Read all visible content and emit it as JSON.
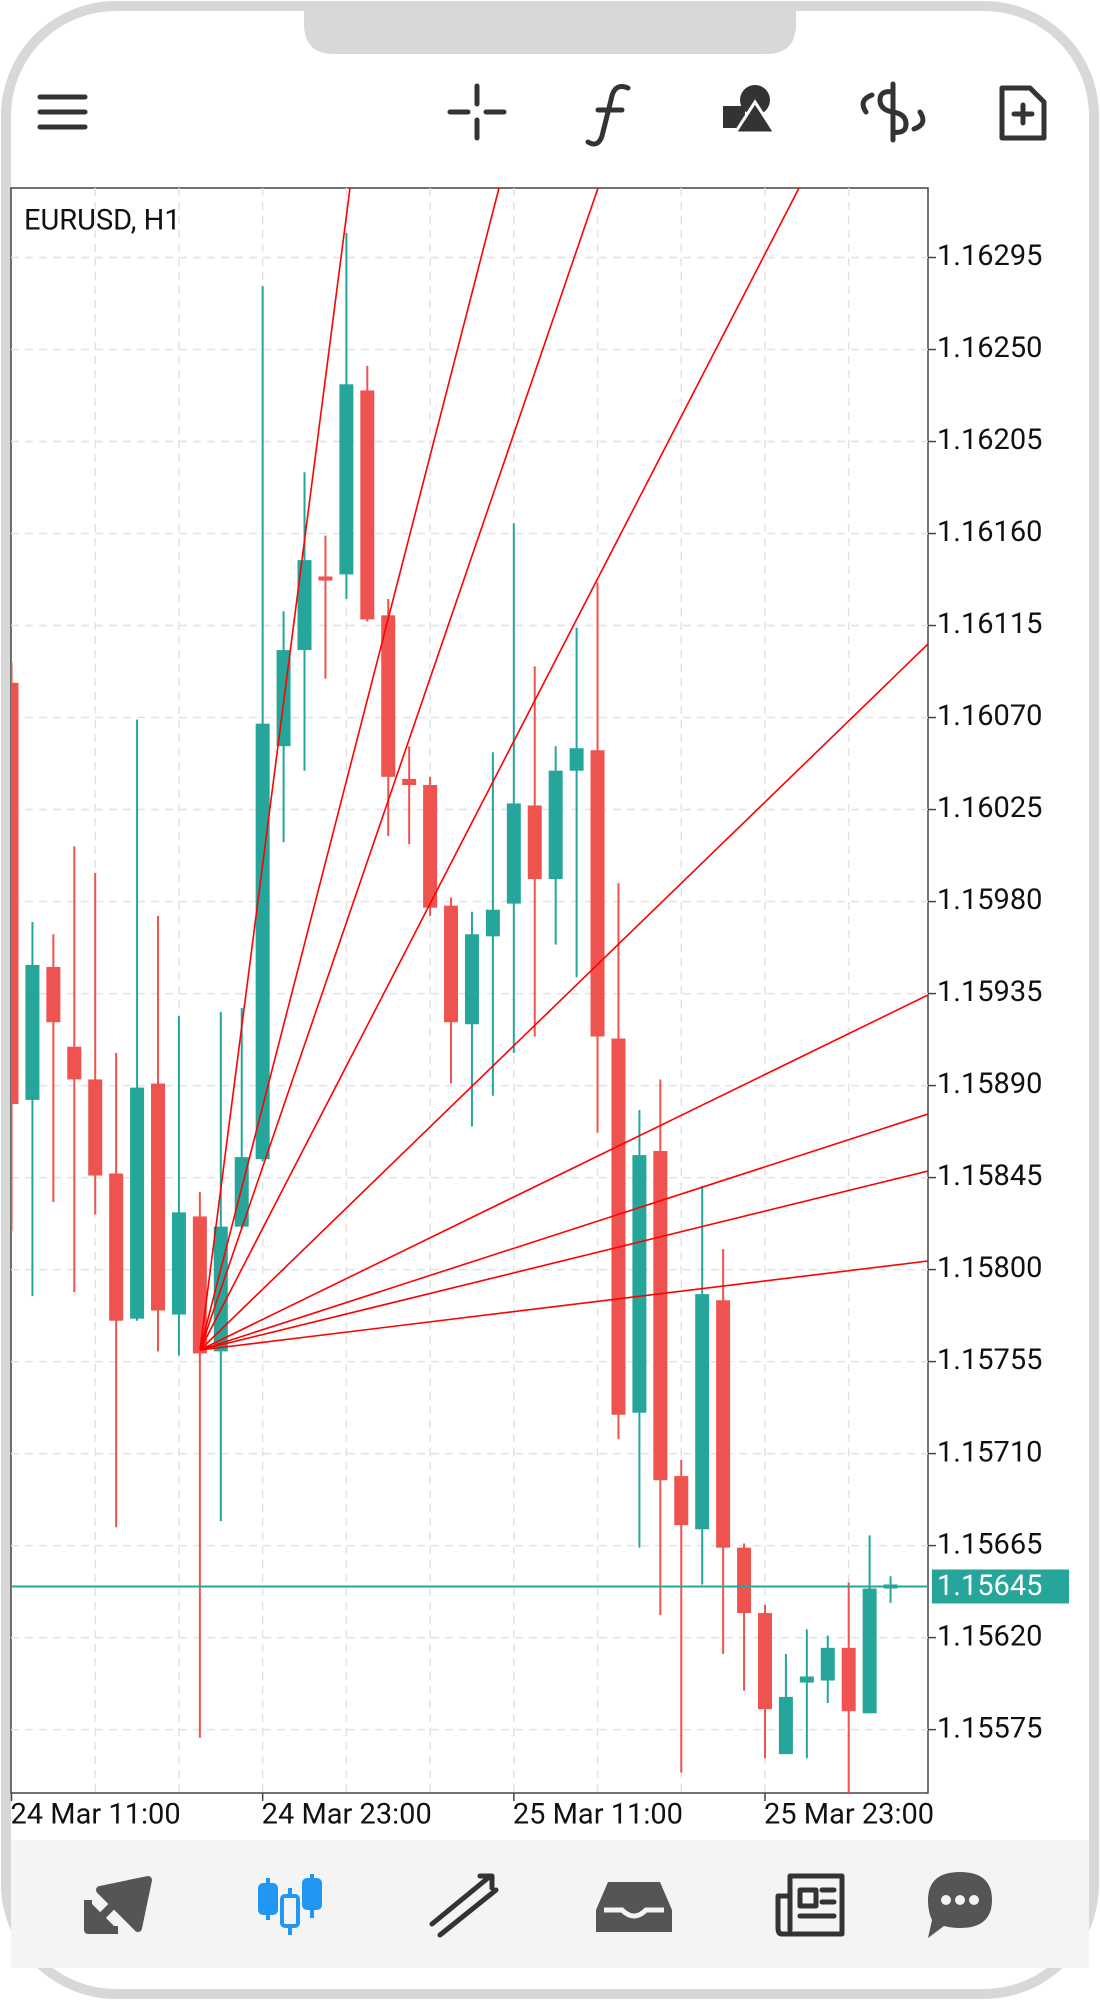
{
  "chart_data": {
    "type": "candlestick",
    "title": "EURUSD, H1",
    "categories": [
      "24 Mar 11:00",
      null,
      null,
      null,
      null,
      null,
      null,
      null,
      null,
      null,
      null,
      null,
      "24 Mar 23:00",
      null,
      null,
      null,
      null,
      null,
      null,
      null,
      null,
      null,
      null,
      null,
      "25 Mar 11:00",
      null,
      null,
      null,
      null,
      null,
      null,
      null,
      null,
      null,
      null,
      null,
      "25 Mar 23:00",
      null,
      null,
      null,
      null,
      null,
      null
    ],
    "open": [
      1.16087,
      1.15883,
      1.15948,
      1.15909,
      1.15893,
      1.15847,
      1.15776,
      1.15891,
      1.15778,
      1.15826,
      1.1576,
      1.15821,
      1.15854,
      1.16056,
      1.16103,
      1.16139,
      1.1614,
      1.1623,
      1.1612,
      1.1604,
      1.16037,
      1.15978,
      1.1592,
      1.15963,
      1.15979,
      1.16027,
      1.15991,
      1.16044,
      1.16054,
      1.15913,
      1.1573,
      1.15858,
      1.15699,
      1.15673,
      1.15785,
      1.15664,
      1.15632,
      1.15563,
      1.15598,
      1.15599,
      1.15615,
      1.15583,
      1.15644
    ],
    "high": [
      1.16097,
      1.1597,
      1.15964,
      1.16007,
      1.15994,
      1.15906,
      1.16069,
      1.15973,
      1.15924,
      1.15838,
      1.15926,
      1.15928,
      1.16281,
      1.16122,
      1.1619,
      1.16159,
      1.16307,
      1.16242,
      1.16128,
      1.16056,
      1.16041,
      1.15982,
      1.15975,
      1.16053,
      1.16165,
      1.16095,
      1.16056,
      1.16114,
      1.16136,
      1.15989,
      1.15878,
      1.15893,
      1.15707,
      1.15841,
      1.1581,
      1.15666,
      1.15636,
      1.15612,
      1.15624,
      1.15621,
      1.15647,
      1.1567,
      1.1565
    ],
    "low": [
      1.15819,
      1.15787,
      1.15833,
      1.15789,
      1.15827,
      1.15674,
      1.15775,
      1.1576,
      1.15758,
      1.15571,
      1.15677,
      1.1582,
      1.15853,
      1.16009,
      1.16044,
      1.16089,
      1.16128,
      1.16117,
      1.16012,
      1.16008,
      1.15973,
      1.15891,
      1.1587,
      1.15885,
      1.15906,
      1.15914,
      1.15959,
      1.15943,
      1.15867,
      1.15717,
      1.15664,
      1.15631,
      1.15554,
      1.15646,
      1.15612,
      1.15594,
      1.15561,
      1.15563,
      1.15561,
      1.15588,
      1.15544,
      1.15583,
      1.15637
    ],
    "close": [
      1.15881,
      1.15949,
      1.15921,
      1.15893,
      1.15846,
      1.15775,
      1.15889,
      1.1578,
      1.15828,
      1.15759,
      1.15821,
      1.15855,
      1.16067,
      1.16103,
      1.16147,
      1.16137,
      1.16233,
      1.16118,
      1.16041,
      1.16037,
      1.15977,
      1.15921,
      1.15964,
      1.15976,
      1.16028,
      1.15991,
      1.16044,
      1.16055,
      1.15914,
      1.15729,
      1.15856,
      1.15697,
      1.15675,
      1.15788,
      1.15664,
      1.15632,
      1.15585,
      1.15591,
      1.15601,
      1.15615,
      1.15584,
      1.15644,
      1.15646
    ],
    "up_color": "#26a69a",
    "down_color": "#ef5350",
    "last_price": 1.15645,
    "ylim": [
      1.15544,
      1.16329
    ],
    "yticks": [
      1.16295,
      {
        "value": 1.1625,
        "label": "1.16250"
      },
      1.16205,
      {
        "value": 1.1616,
        "label": "1.16160"
      },
      1.16115,
      {
        "value": 1.1607,
        "label": "1.16070"
      },
      1.16025,
      {
        "value": 1.1598,
        "label": "1.15980"
      },
      1.15935,
      {
        "value": 1.1589,
        "label": "1.15890"
      },
      1.15845,
      {
        "value": 1.158,
        "label": "1.15800"
      },
      1.15755,
      {
        "value": 1.1571,
        "label": "1.15710"
      },
      1.15665,
      {
        "value": 1.1562,
        "label": "1.15620"
      },
      1.15575
    ],
    "grid": true
  }
}
